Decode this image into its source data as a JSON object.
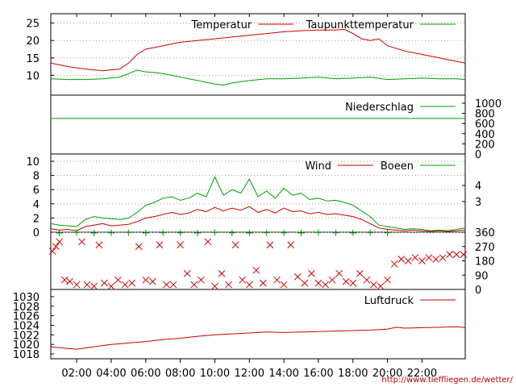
{
  "credit": "http://www.tiefflie­gen.de/wetter/",
  "colors": {
    "red": "#cc0000",
    "green": "#00a000",
    "grid": "#a0a0a0"
  },
  "chart_data": {
    "type": "line",
    "x_ticks": [
      "02:00",
      "04:00",
      "06:00",
      "08:00",
      "10:00",
      "12:00",
      "14:00",
      "16:00",
      "18:00",
      "20:00",
      "22:00"
    ],
    "x_range_hours": [
      0.5,
      24.5
    ],
    "panels": [
      {
        "key": "temp",
        "ylim": [
          5,
          27
        ],
        "yticks_left": [
          "10",
          "15",
          "20",
          "25"
        ],
        "legend": [
          "Temperatur",
          "Taupunkttemperatur"
        ],
        "series": [
          {
            "name": "Temperatur",
            "color": "red",
            "x": [
              0.5,
              1.5,
              2.5,
              3.5,
              4.5,
              5.0,
              5.5,
              6.0,
              6.5,
              7.0,
              8.0,
              9.0,
              10.0,
              11.0,
              12.0,
              13.0,
              14.0,
              15.0,
              16.0,
              17.0,
              17.5,
              18.0,
              18.5,
              19.0,
              19.5,
              20.0,
              21.0,
              22.0,
              23.0,
              24.0,
              24.5
            ],
            "y": [
              13.5,
              12.5,
              11.8,
              11.3,
              11.8,
              13.5,
              16.0,
              17.5,
              18.0,
              18.5,
              19.5,
              20.0,
              20.5,
              21.0,
              21.5,
              22.0,
              22.5,
              22.8,
              23.0,
              23.0,
              23.2,
              22.0,
              20.5,
              20.0,
              20.5,
              18.5,
              17.0,
              16.0,
              15.0,
              14.0,
              13.5
            ]
          },
          {
            "name": "Taupunkttemperatur",
            "color": "green",
            "x": [
              0.5,
              1.5,
              2.5,
              3.5,
              4.5,
              5.0,
              5.5,
              6.0,
              6.5,
              7.0,
              7.5,
              8.0,
              9.0,
              10.0,
              10.5,
              11.0,
              12.0,
              13.0,
              14.0,
              15.0,
              16.0,
              17.0,
              18.0,
              19.0,
              20.0,
              21.0,
              22.0,
              23.0,
              24.0,
              24.5
            ],
            "y": [
              9.0,
              8.8,
              8.8,
              9.0,
              9.5,
              10.5,
              11.5,
              11.0,
              10.8,
              10.5,
              10.0,
              9.5,
              8.5,
              7.5,
              7.2,
              7.8,
              8.5,
              9.0,
              9.0,
              9.2,
              9.5,
              9.0,
              9.2,
              9.5,
              8.8,
              9.0,
              9.2,
              9.0,
              9.0,
              8.8
            ]
          }
        ]
      },
      {
        "key": "rain",
        "ylim": [
          0,
          1000
        ],
        "yticks_right": [
          "1000",
          "800",
          "600",
          "400",
          "200",
          "0"
        ],
        "legend": [
          "Niederschlag"
        ],
        "series": [
          {
            "name": "Niederschlag",
            "color": "green",
            "x": [
              0.5,
              24.5
            ],
            "y": [
              700,
              700
            ]
          }
        ]
      },
      {
        "key": "wind",
        "ylim": [
          0,
          10
        ],
        "yticks_left": [
          "0",
          "2",
          "4",
          "6",
          "8",
          "10"
        ],
        "yticks_right": [
          "4",
          "3"
        ],
        "legend": [
          "Wind",
          "Boeen"
        ],
        "series": [
          {
            "name": "Wind",
            "color": "red",
            "x": [
              0.5,
              1.0,
              1.5,
              2.0,
              2.5,
              3.0,
              3.5,
              4.0,
              4.5,
              5.0,
              5.5,
              6.0,
              6.5,
              7.0,
              7.5,
              8.0,
              8.5,
              9.0,
              9.5,
              10.0,
              10.5,
              11.0,
              11.5,
              12.0,
              12.5,
              13.0,
              13.5,
              14.0,
              14.5,
              15.0,
              15.5,
              16.0,
              16.5,
              17.0,
              17.5,
              18.0,
              18.5,
              19.0,
              19.5,
              20.0,
              20.5,
              21.0,
              21.5,
              22.0,
              22.5,
              23.0,
              23.5,
              24.0,
              24.5
            ],
            "y": [
              0.5,
              0.3,
              0.4,
              0.2,
              0.8,
              1.0,
              1.2,
              0.9,
              1.0,
              1.1,
              1.5,
              2.0,
              2.2,
              2.5,
              2.8,
              2.5,
              2.7,
              3.2,
              2.9,
              3.5,
              3.0,
              3.4,
              3.1,
              3.6,
              2.8,
              3.2,
              2.7,
              3.4,
              2.9,
              3.0,
              2.6,
              2.8,
              2.5,
              2.6,
              2.4,
              2.2,
              1.8,
              1.2,
              0.6,
              0.4,
              0.3,
              0.2,
              0.3,
              0.2,
              0.1,
              0.2,
              0.1,
              0.2,
              0.3
            ]
          },
          {
            "name": "Boeen",
            "color": "green",
            "x": [
              0.5,
              1.0,
              1.5,
              2.0,
              2.5,
              3.0,
              3.5,
              4.0,
              4.5,
              5.0,
              5.5,
              6.0,
              6.5,
              7.0,
              7.5,
              8.0,
              8.5,
              9.0,
              9.5,
              10.0,
              10.5,
              11.0,
              11.5,
              12.0,
              12.5,
              13.0,
              13.5,
              14.0,
              14.5,
              15.0,
              15.5,
              16.0,
              16.5,
              17.0,
              17.5,
              18.0,
              18.5,
              19.0,
              19.5,
              20.0,
              20.5,
              21.0,
              21.5,
              22.0,
              22.5,
              23.0,
              23.5,
              24.0,
              24.5
            ],
            "y": [
              1.2,
              1.0,
              0.9,
              0.8,
              1.8,
              2.2,
              2.0,
              1.9,
              1.8,
              2.0,
              2.8,
              3.8,
              4.2,
              4.8,
              5.0,
              4.5,
              4.8,
              5.5,
              5.0,
              7.8,
              5.2,
              6.0,
              5.5,
              7.5,
              5.0,
              5.8,
              4.8,
              6.2,
              5.2,
              5.5,
              4.6,
              4.8,
              4.4,
              4.5,
              4.2,
              3.8,
              3.0,
              2.2,
              1.0,
              0.8,
              0.6,
              0.4,
              0.5,
              0.4,
              0.2,
              0.3,
              0.2,
              0.4,
              0.6
            ]
          }
        ]
      },
      {
        "key": "dir",
        "ylim": [
          0,
          360
        ],
        "yticks_right": [
          "360",
          "270",
          "180",
          "90",
          "0"
        ],
        "legend": [],
        "series": [
          {
            "name": "",
            "color": "red",
            "marker": "x",
            "x": [
              0.6,
              0.8,
              1.0,
              1.3,
              1.6,
              2.0,
              2.3,
              2.6,
              3.0,
              3.3,
              3.6,
              4.0,
              4.4,
              4.8,
              5.2,
              5.6,
              6.0,
              6.4,
              6.8,
              7.2,
              7.6,
              8.0,
              8.4,
              8.8,
              9.2,
              9.6,
              10.0,
              10.4,
              10.8,
              11.2,
              11.6,
              12.0,
              12.4,
              12.8,
              13.2,
              13.6,
              14.0,
              14.4,
              14.8,
              15.2,
              15.6,
              16.0,
              16.4,
              16.8,
              17.2,
              17.6,
              18.0,
              18.4,
              18.8,
              19.2,
              19.6,
              20.0,
              20.4,
              20.8,
              21.2,
              21.6,
              22.0,
              22.4,
              22.8,
              23.2,
              23.6,
              24.0,
              24.4
            ],
            "y": [
              240,
              270,
              300,
              60,
              50,
              30,
              300,
              30,
              20,
              280,
              40,
              20,
              60,
              30,
              40,
              270,
              60,
              50,
              280,
              30,
              30,
              280,
              100,
              30,
              60,
              300,
              20,
              100,
              30,
              280,
              60,
              30,
              120,
              40,
              280,
              60,
              30,
              280,
              80,
              40,
              100,
              40,
              30,
              60,
              100,
              50,
              40,
              100,
              60,
              30,
              20,
              60,
              160,
              190,
              180,
              200,
              180,
              200,
              190,
              200,
              220,
              220,
              220
            ]
          },
          {
            "name": "",
            "color": "green",
            "marker": "+",
            "x": [
              1.0,
              2.0,
              3.0,
              4.0,
              5.0,
              6.0,
              7.0,
              8.0,
              9.0,
              10.0,
              11.0,
              12.0,
              13.0,
              14.0,
              15.0,
              16.0,
              17.0,
              18.0,
              19.0,
              20.0
            ],
            "y": [
              355,
              358,
              355,
              356,
              358,
              355,
              357,
              356,
              355,
              358,
              356,
              355,
              357,
              356,
              355,
              358,
              356,
              355,
              357,
              356
            ]
          }
        ]
      },
      {
        "key": "press",
        "ylim": [
          1017.5,
          1031
        ],
        "yticks_left": [
          "1018",
          "1020",
          "1022",
          "1024",
          "1026",
          "1028",
          "1030"
        ],
        "legend": [
          "Luftdruck"
        ],
        "series": [
          {
            "name": "Luftdruck",
            "color": "red",
            "x": [
              0.5,
              1.0,
              2.0,
              3.0,
              4.0,
              5.0,
              6.0,
              7.0,
              8.0,
              9.0,
              10.0,
              11.0,
              12.0,
              13.0,
              14.0,
              15.0,
              16.0,
              17.0,
              18.0,
              19.0,
              20.0,
              20.5,
              21.0,
              22.0,
              23.0,
              24.0,
              24.5
            ],
            "y": [
              1019.5,
              1019.3,
              1019.0,
              1019.5,
              1020.0,
              1020.3,
              1020.6,
              1021.0,
              1021.3,
              1021.7,
              1022.0,
              1022.2,
              1022.4,
              1022.6,
              1022.5,
              1022.6,
              1022.7,
              1022.8,
              1022.9,
              1023.0,
              1023.2,
              1023.6,
              1023.4,
              1023.5,
              1023.6,
              1023.7,
              1023.5
            ]
          }
        ]
      }
    ]
  }
}
